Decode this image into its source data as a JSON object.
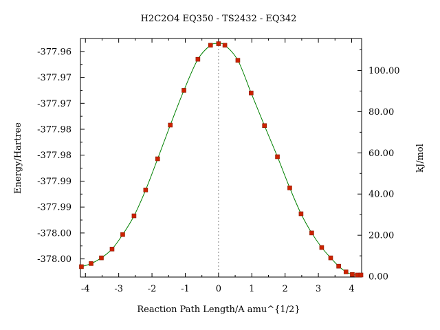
{
  "chart_data": {
    "type": "line",
    "title": "H2C2O4    EQ350 - TS2432 - EQ342",
    "xlabel": "Reaction Path Length/A amu^{1/2}",
    "ylabel": "Energy/Hartree",
    "y2label": "kJ/mol",
    "xlim": [
      -4.15,
      4.3
    ],
    "ylim": [
      -378.0035,
      -377.9575
    ],
    "y2lim": [
      -0.3,
      115.5
    ],
    "x_ticks": [
      -4,
      -3,
      -2,
      -1,
      0,
      1,
      2,
      3,
      4
    ],
    "x_tick_labels": [
      "-4",
      "-3",
      "-2",
      "-1",
      "0",
      "1",
      "2",
      "3",
      "4"
    ],
    "y_ticks": [
      -377.96,
      -377.965,
      -377.97,
      -377.975,
      -377.98,
      -377.985,
      -377.99,
      -377.995,
      -378.0
    ],
    "y_tick_labels": [
      "-377.96",
      "-377.97",
      "-377.97",
      "-377.98",
      "-377.98",
      "-377.99",
      "-377.99",
      "-378.00",
      "-378.00"
    ],
    "y2_ticks": [
      0,
      20,
      40,
      60,
      80,
      100
    ],
    "y2_tick_labels": [
      "0.00",
      "20.00",
      "40.00",
      "60.00",
      "80.00",
      "100.00"
    ],
    "ts_x": 0,
    "grid": false,
    "line_color": "#008000",
    "marker_color": "#cc2200",
    "points": {
      "x": [
        -4.12,
        -3.83,
        -3.52,
        -3.2,
        -2.88,
        -2.54,
        -2.19,
        -1.83,
        -1.45,
        -1.04,
        -0.62,
        -0.24,
        0.0,
        0.19,
        0.58,
        0.98,
        1.38,
        1.77,
        2.14,
        2.48,
        2.8,
        3.1,
        3.37,
        3.61,
        3.83,
        4.02,
        4.17,
        4.28
      ],
      "y": [
        -378.0015,
        -378.0009,
        -377.9998,
        -377.9981,
        -377.9953,
        -377.9917,
        -377.9867,
        -377.9807,
        -377.9742,
        -377.9675,
        -377.9615,
        -377.9588,
        -377.9585,
        -377.9588,
        -377.9617,
        -377.968,
        -377.9743,
        -377.9803,
        -377.9863,
        -377.9913,
        -377.995,
        -377.9978,
        -377.9998,
        -378.0014,
        -378.0025,
        -378.003,
        -378.0031,
        -378.0031
      ]
    }
  }
}
